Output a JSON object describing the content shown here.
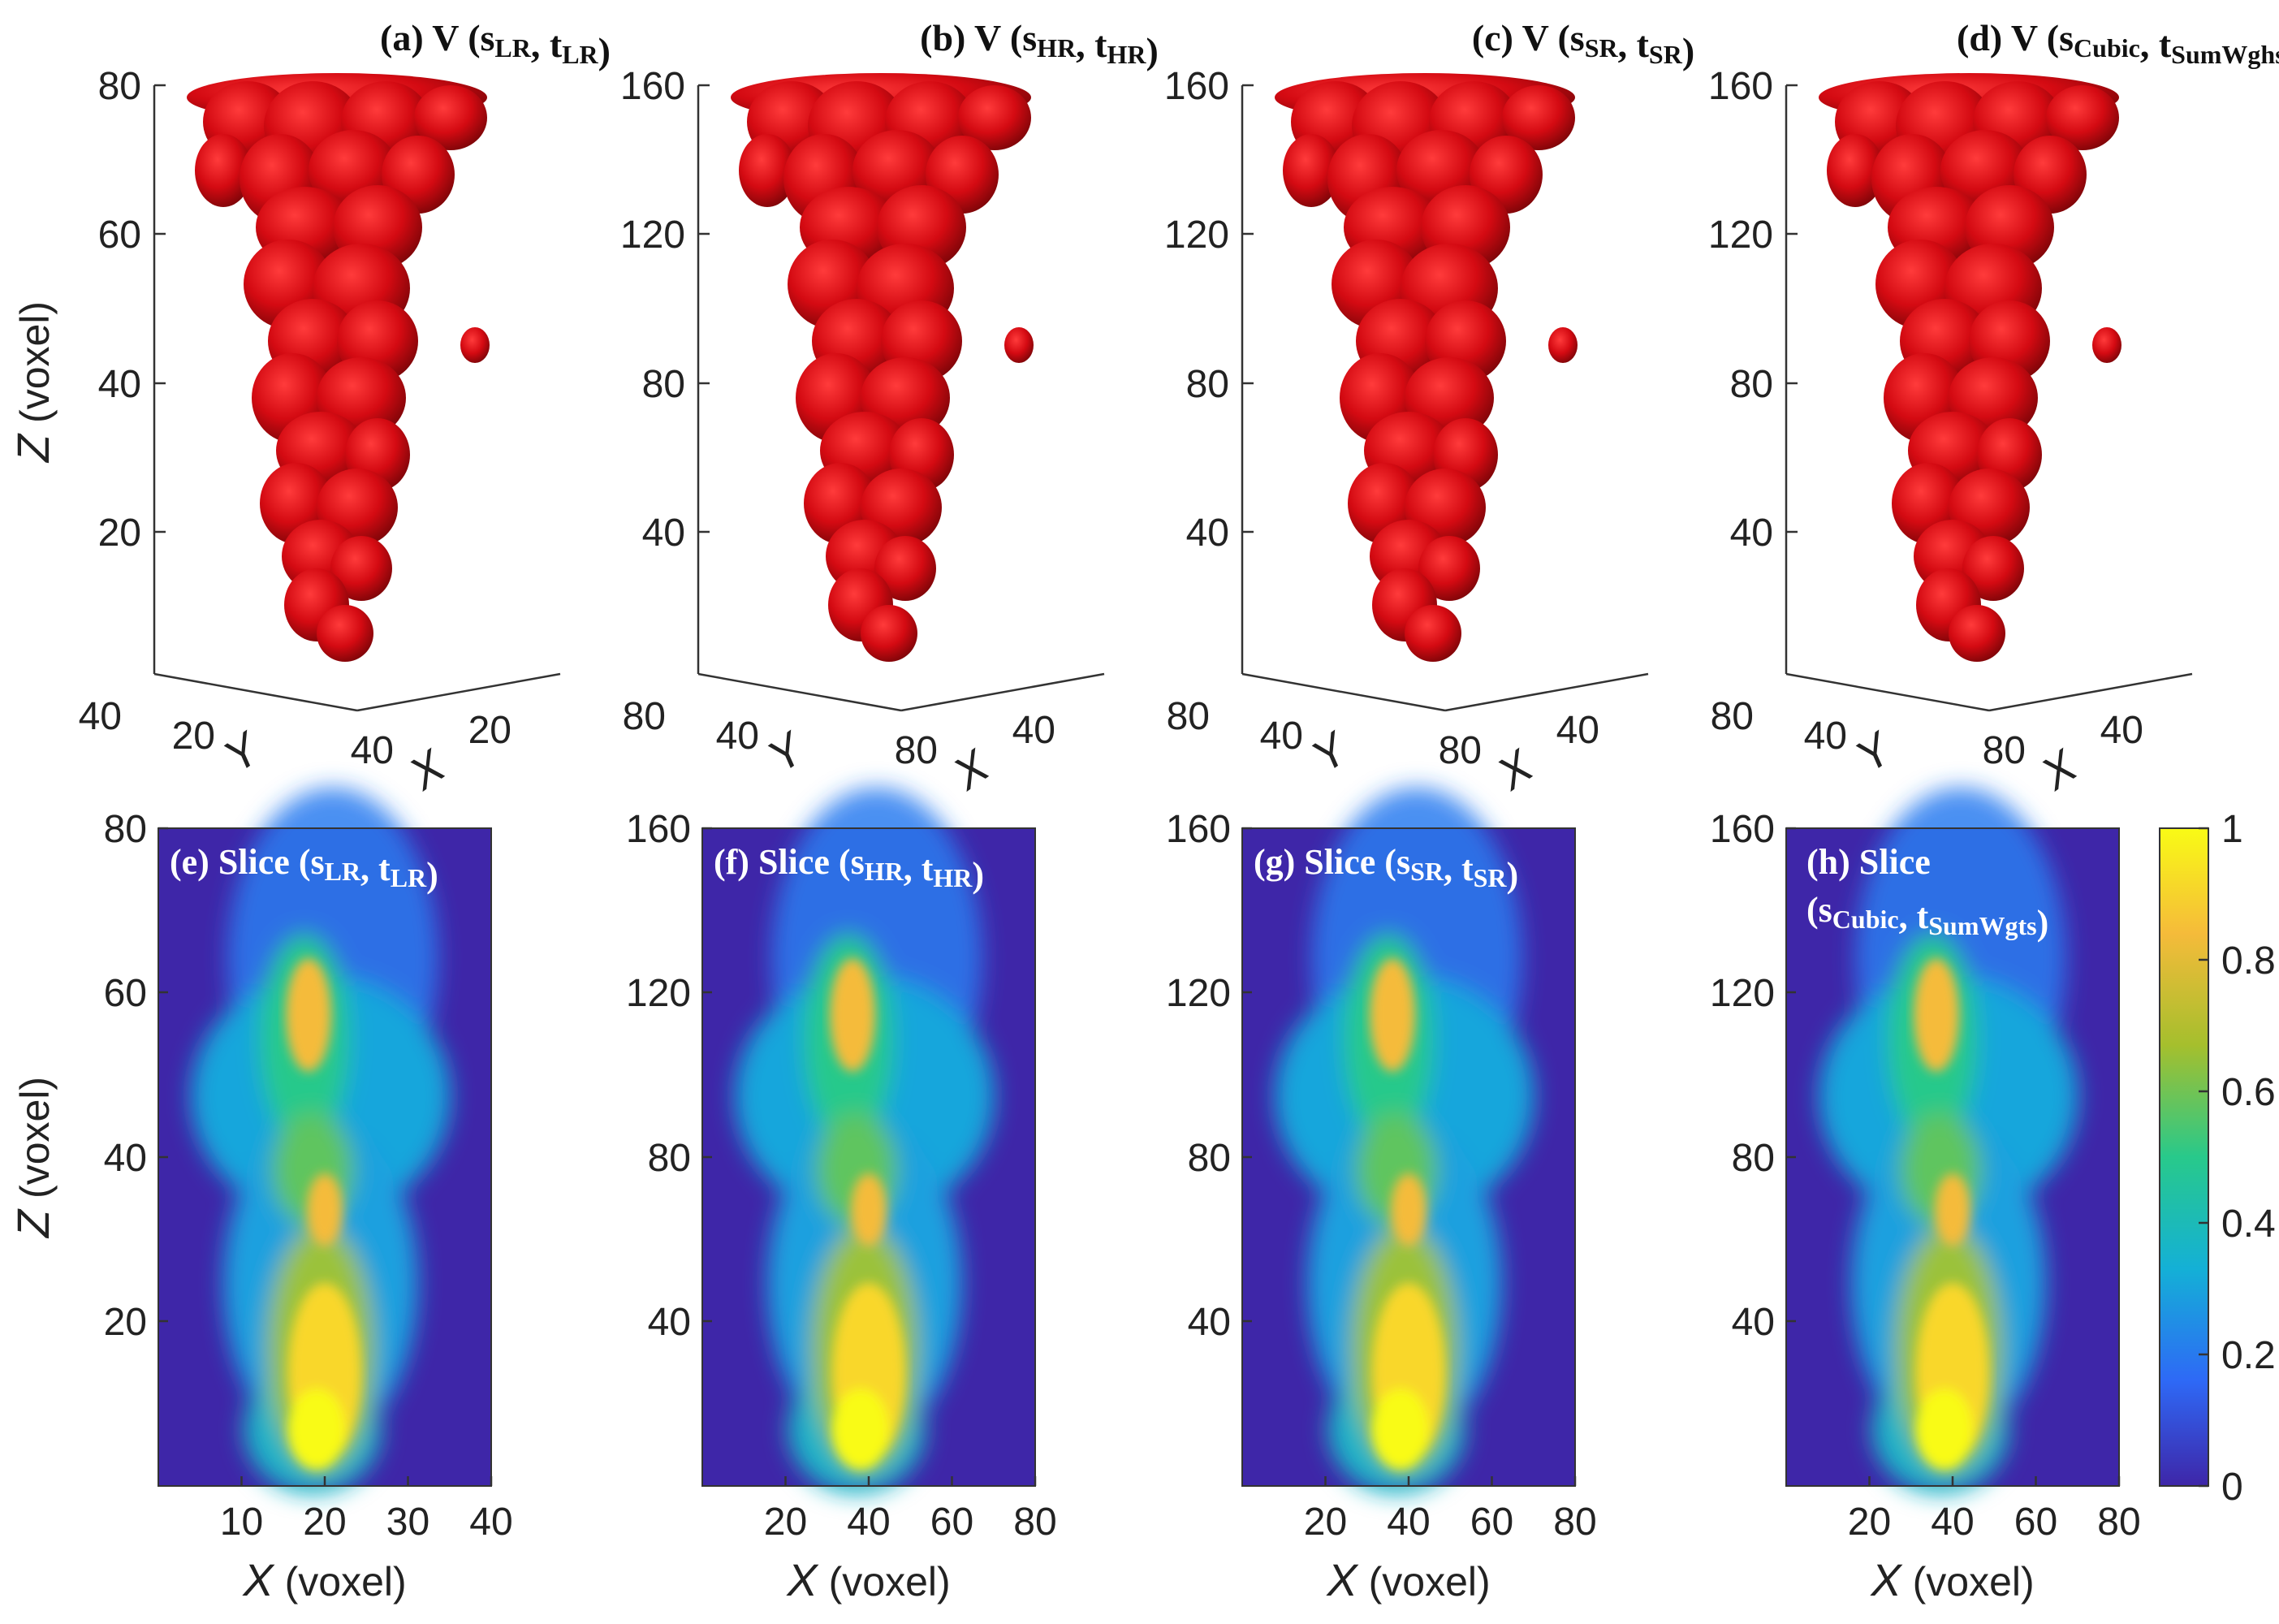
{
  "figure": {
    "volume_panels": [
      {
        "label": "(a) V (",
        "s_sub": "LR",
        "t_sub": "LR",
        "z_ticks": [
          "80",
          "60",
          "40",
          "20"
        ],
        "y_ticks": [
          "40",
          "20"
        ],
        "x_ticks": [
          "40",
          "20"
        ]
      },
      {
        "label": "(b) V (",
        "s_sub": "HR",
        "t_sub": "HR",
        "z_ticks": [
          "160",
          "120",
          "80",
          "40"
        ],
        "y_ticks": [
          "80",
          "40"
        ],
        "x_ticks": [
          "80",
          "40"
        ]
      },
      {
        "label": "(c) V (",
        "s_sub": "SR",
        "t_sub": "SR",
        "z_ticks": [
          "160",
          "120",
          "80",
          "40"
        ],
        "y_ticks": [
          "80",
          "40"
        ],
        "x_ticks": [
          "80",
          "40"
        ]
      },
      {
        "label": "(d) V (",
        "s_sub": "Cubic",
        "t_sub": "SumWghs",
        "z_ticks": [
          "160",
          "120",
          "80",
          "40"
        ],
        "y_ticks": [
          "80",
          "40"
        ],
        "x_ticks": [
          "80",
          "40"
        ]
      }
    ],
    "slice_panels": [
      {
        "label": "(e) Slice (",
        "s_sub": "LR",
        "t_sub": "LR",
        "z_ticks": [
          "80",
          "60",
          "40",
          "20"
        ],
        "x_ticks": [
          "10",
          "20",
          "30",
          "40"
        ]
      },
      {
        "label": "(f) Slice (",
        "s_sub": "HR",
        "t_sub": "HR",
        "z_ticks": [
          "160",
          "120",
          "80",
          "40"
        ],
        "x_ticks": [
          "20",
          "40",
          "60",
          "80"
        ]
      },
      {
        "label": "(g) Slice (",
        "s_sub": "SR",
        "t_sub": "SR",
        "z_ticks": [
          "160",
          "120",
          "80",
          "40"
        ],
        "x_ticks": [
          "20",
          "40",
          "60",
          "80"
        ]
      },
      {
        "label": "(h) Slice",
        "label2": "(",
        "s_sub": "Cubic",
        "t_sub": "SumWgts",
        "z_ticks": [
          "160",
          "120",
          "80",
          "40"
        ],
        "x_ticks": [
          "20",
          "40",
          "60",
          "80"
        ]
      }
    ],
    "axis_labels": {
      "z_italic": "Z",
      "z_unit": " (voxel)",
      "x_italic": "X",
      "x_unit": " (voxel)",
      "y_italic": "Y",
      "x3d_italic": "X",
      "s": "s",
      "t": "t",
      "comma": ", ",
      "close": ")"
    },
    "colorbar": {
      "ticks": [
        "1",
        "0.8",
        "0.6",
        "0.4",
        "0.2",
        "0"
      ],
      "values": [
        1,
        0.8,
        0.6,
        0.4,
        0.2,
        0
      ],
      "colormap": [
        "#3e26a8",
        "#2e69f6",
        "#14b0d6",
        "#28c98b",
        "#a5bf2d",
        "#f5bb3a",
        "#f9fb15"
      ]
    },
    "colors": {
      "plume": "#d40a12",
      "plume_dark": "#7a0508",
      "slice_bg": "#3e26a8"
    }
  }
}
